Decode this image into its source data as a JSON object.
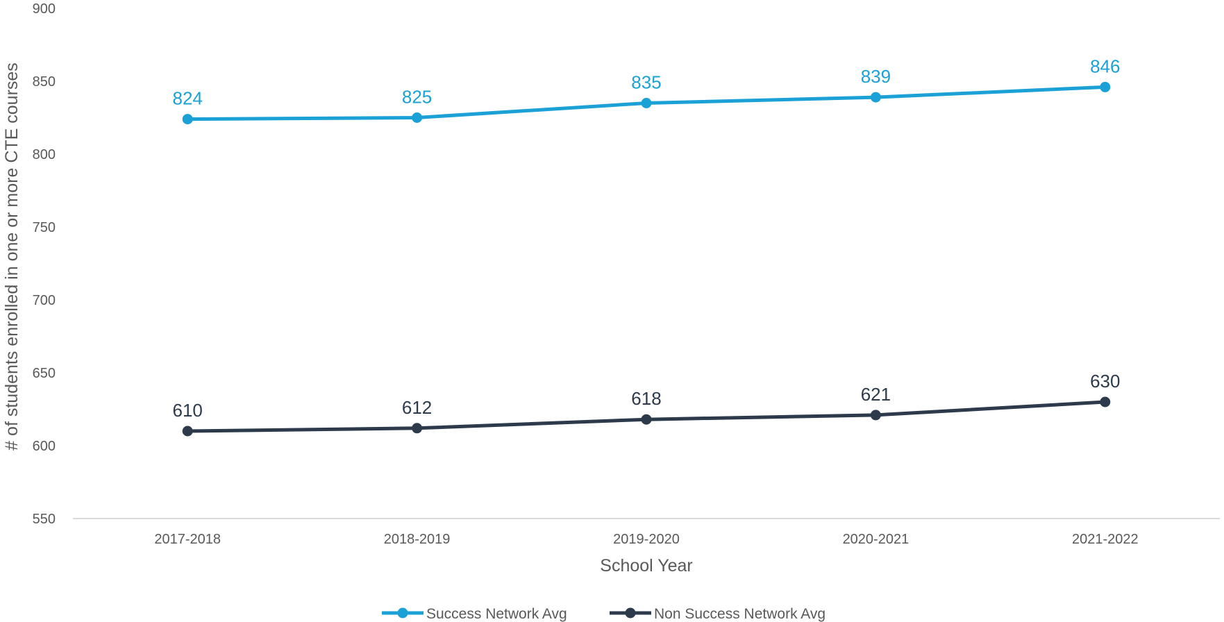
{
  "chart_data": {
    "type": "line",
    "categories": [
      "2017-2018",
      "2018-2019",
      "2019-2020",
      "2020-2021",
      "2021-2022"
    ],
    "series": [
      {
        "name": "Success Network Avg",
        "values": [
          824,
          825,
          835,
          839,
          846
        ],
        "color": "#1ba1d5"
      },
      {
        "name": "Non Success Network Avg",
        "values": [
          610,
          612,
          618,
          621,
          630
        ],
        "color": "#2c3a4b"
      }
    ],
    "title": "",
    "xlabel": "School Year",
    "ylabel": "# of students enrolled in one or more CTE courses",
    "ylim": [
      550,
      900
    ],
    "yticks": [
      550,
      600,
      650,
      700,
      750,
      800,
      850,
      900
    ],
    "grid": false,
    "legend_position": "bottom-center",
    "axis_color": "#d9d9d9",
    "text_color": "#595959"
  }
}
